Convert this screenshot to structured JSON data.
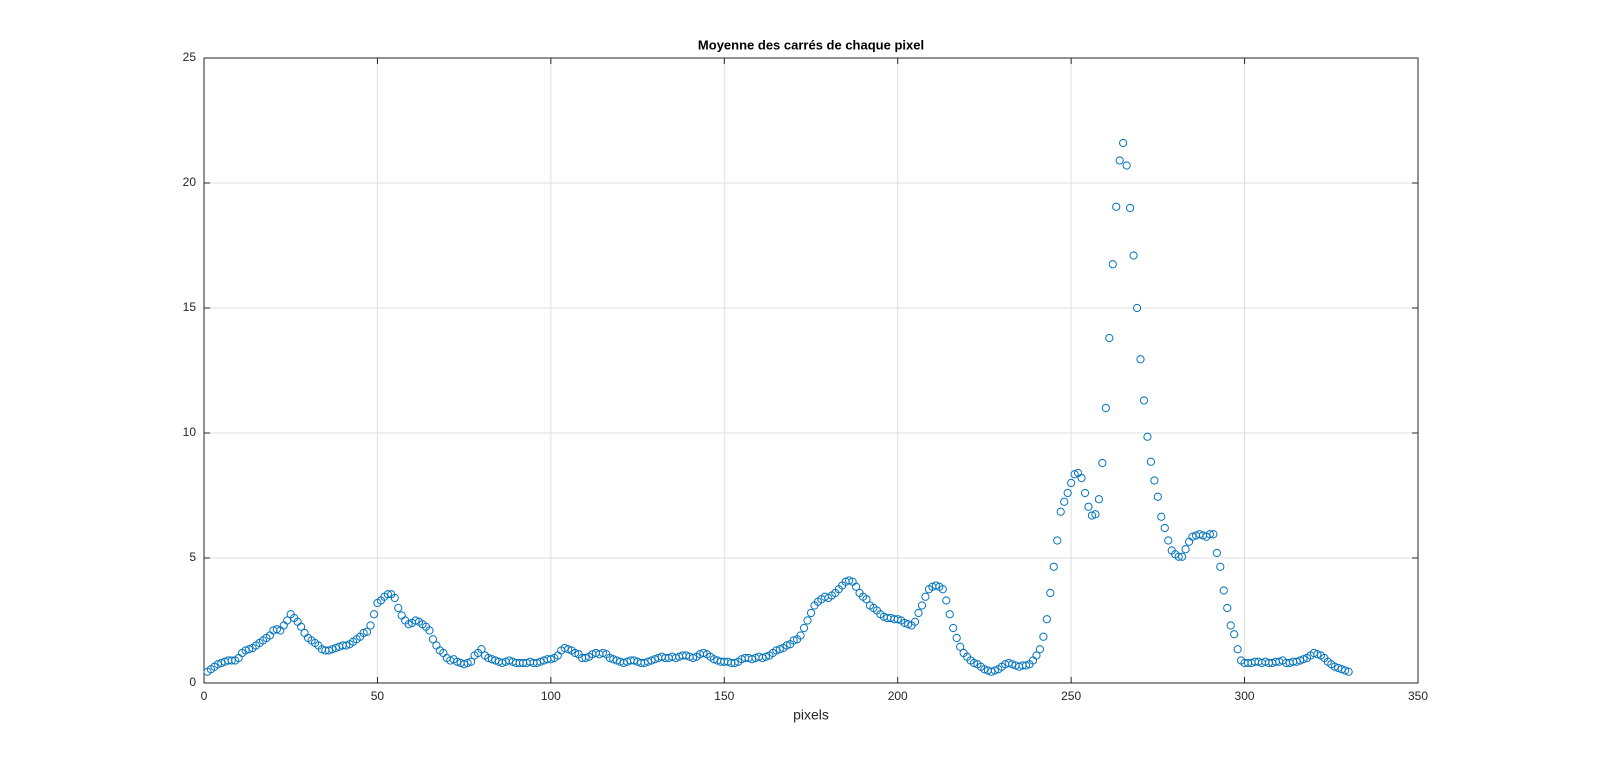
{
  "chart_data": {
    "type": "scatter",
    "title": "Moyenne des carrés de chaque pixel",
    "x_label": "pixels",
    "xlim": [
      0,
      350
    ],
    "xticks": [
      0,
      50,
      100,
      150,
      200,
      250,
      300,
      350
    ],
    "ylim": [
      0,
      25
    ],
    "yticks": [
      0,
      5,
      10,
      15,
      20,
      25
    ],
    "grid": true,
    "series": [
      {
        "color": "#0072bd",
        "x": [
          1,
          2,
          3,
          4,
          5,
          6,
          7,
          8,
          9,
          10,
          11,
          12,
          13,
          14,
          15,
          16,
          17,
          18,
          19,
          20,
          21,
          22,
          23,
          24,
          25,
          26,
          27,
          28,
          29,
          30,
          31,
          32,
          33,
          34,
          35,
          36,
          37,
          38,
          39,
          40,
          41,
          42,
          43,
          44,
          45,
          46,
          47,
          48,
          49,
          50,
          51,
          52,
          53,
          54,
          55,
          56,
          57,
          58,
          59,
          60,
          61,
          62,
          63,
          64,
          65,
          66,
          67,
          68,
          69,
          70,
          71,
          72,
          73,
          74,
          75,
          76,
          77,
          78,
          79,
          80,
          81,
          82,
          83,
          84,
          85,
          86,
          87,
          88,
          89,
          90,
          91,
          92,
          93,
          94,
          95,
          96,
          97,
          98,
          99,
          100,
          101,
          102,
          103,
          104,
          105,
          106,
          107,
          108,
          109,
          110,
          111,
          112,
          113,
          114,
          115,
          116,
          117,
          118,
          119,
          120,
          121,
          122,
          123,
          124,
          125,
          126,
          127,
          128,
          129,
          130,
          131,
          132,
          133,
          134,
          135,
          136,
          137,
          138,
          139,
          140,
          141,
          142,
          143,
          144,
          145,
          146,
          147,
          148,
          149,
          150,
          151,
          152,
          153,
          154,
          155,
          156,
          157,
          158,
          159,
          160,
          161,
          162,
          163,
          164,
          165,
          166,
          167,
          168,
          169,
          170,
          171,
          172,
          173,
          174,
          175,
          176,
          177,
          178,
          179,
          180,
          181,
          182,
          183,
          184,
          185,
          186,
          187,
          188,
          189,
          190,
          191,
          192,
          193,
          194,
          195,
          196,
          197,
          198,
          199,
          200,
          201,
          202,
          203,
          204,
          205,
          206,
          207,
          208,
          209,
          210,
          211,
          212,
          213,
          214,
          215,
          216,
          217,
          218,
          219,
          220,
          221,
          222,
          223,
          224,
          225,
          226,
          227,
          228,
          229,
          230,
          231,
          232,
          233,
          234,
          235,
          236,
          237,
          238,
          239,
          240,
          241,
          242,
          243,
          244,
          245,
          246,
          247,
          248,
          249,
          250,
          251,
          252,
          253,
          254,
          255,
          256,
          257,
          258,
          259,
          260,
          261,
          262,
          263,
          264,
          265,
          266,
          267,
          268,
          269,
          270,
          271,
          272,
          273,
          274,
          275,
          276,
          277,
          278,
          279,
          280,
          281,
          282,
          283,
          284,
          285,
          286,
          287,
          288,
          289,
          290,
          291,
          292,
          293,
          294,
          295,
          296,
          297,
          298,
          299,
          300,
          301,
          302,
          303,
          304,
          305,
          306,
          307,
          308,
          309,
          310,
          311,
          312,
          313,
          314,
          315,
          316,
          317,
          318,
          319,
          320,
          321,
          322,
          323,
          324,
          325,
          326,
          327,
          328,
          329,
          330
        ],
        "values": [
          0.45,
          0.55,
          0.65,
          0.75,
          0.8,
          0.85,
          0.9,
          0.9,
          0.9,
          1.0,
          1.2,
          1.3,
          1.35,
          1.4,
          1.5,
          1.6,
          1.7,
          1.8,
          1.9,
          2.1,
          2.15,
          2.1,
          2.3,
          2.5,
          2.75,
          2.6,
          2.45,
          2.25,
          2.0,
          1.8,
          1.7,
          1.6,
          1.5,
          1.35,
          1.3,
          1.3,
          1.35,
          1.4,
          1.45,
          1.5,
          1.5,
          1.55,
          1.65,
          1.75,
          1.85,
          2.0,
          2.05,
          2.3,
          2.75,
          3.2,
          3.3,
          3.45,
          3.55,
          3.55,
          3.4,
          3.0,
          2.7,
          2.5,
          2.35,
          2.4,
          2.5,
          2.45,
          2.35,
          2.25,
          2.1,
          1.75,
          1.5,
          1.3,
          1.2,
          1.0,
          0.9,
          0.95,
          0.85,
          0.8,
          0.75,
          0.8,
          0.85,
          1.1,
          1.2,
          1.35,
          1.1,
          1.0,
          0.95,
          0.9,
          0.85,
          0.8,
          0.85,
          0.9,
          0.85,
          0.8,
          0.8,
          0.8,
          0.8,
          0.85,
          0.8,
          0.8,
          0.85,
          0.9,
          0.95,
          0.95,
          1.0,
          1.1,
          1.3,
          1.4,
          1.35,
          1.3,
          1.2,
          1.15,
          1.0,
          1.0,
          1.05,
          1.15,
          1.2,
          1.15,
          1.2,
          1.15,
          1.0,
          0.95,
          0.9,
          0.85,
          0.8,
          0.85,
          0.9,
          0.9,
          0.85,
          0.8,
          0.8,
          0.85,
          0.9,
          0.95,
          1.0,
          1.05,
          1.0,
          1.0,
          1.05,
          1.0,
          1.05,
          1.1,
          1.1,
          1.05,
          1.0,
          1.05,
          1.15,
          1.2,
          1.15,
          1.05,
          0.95,
          0.9,
          0.85,
          0.85,
          0.85,
          0.8,
          0.8,
          0.85,
          0.95,
          1.0,
          1.0,
          0.95,
          1.0,
          1.05,
          1.0,
          1.05,
          1.1,
          1.2,
          1.3,
          1.35,
          1.4,
          1.5,
          1.55,
          1.7,
          1.75,
          1.9,
          2.2,
          2.5,
          2.8,
          3.1,
          3.25,
          3.35,
          3.45,
          3.4,
          3.5,
          3.6,
          3.75,
          3.9,
          4.05,
          4.1,
          4.05,
          3.85,
          3.6,
          3.45,
          3.35,
          3.1,
          3.0,
          2.9,
          2.75,
          2.65,
          2.6,
          2.6,
          2.55,
          2.55,
          2.5,
          2.4,
          2.35,
          2.3,
          2.45,
          2.8,
          3.1,
          3.45,
          3.75,
          3.85,
          3.9,
          3.85,
          3.75,
          3.3,
          2.75,
          2.2,
          1.8,
          1.45,
          1.2,
          1.05,
          0.9,
          0.8,
          0.75,
          0.65,
          0.55,
          0.5,
          0.45,
          0.5,
          0.55,
          0.65,
          0.75,
          0.8,
          0.75,
          0.7,
          0.65,
          0.7,
          0.7,
          0.75,
          0.9,
          1.1,
          1.35,
          1.85,
          2.55,
          3.6,
          4.65,
          5.7,
          6.85,
          7.25,
          7.6,
          8.0,
          8.35,
          8.4,
          8.2,
          7.6,
          7.05,
          6.7,
          6.75,
          7.35,
          8.8,
          11.0,
          13.8,
          16.75,
          19.05,
          20.9,
          21.6,
          20.7,
          19.0,
          17.1,
          15.0,
          12.95,
          11.3,
          9.85,
          8.85,
          8.1,
          7.45,
          6.65,
          6.2,
          5.7,
          5.3,
          5.15,
          5.05,
          5.05,
          5.35,
          5.65,
          5.85,
          5.9,
          5.95,
          5.9,
          5.85,
          5.95,
          5.95,
          5.2,
          4.65,
          3.7,
          3.0,
          2.3,
          1.95,
          1.35,
          0.9,
          0.8,
          0.8,
          0.8,
          0.85,
          0.85,
          0.8,
          0.85,
          0.8,
          0.8,
          0.85,
          0.85,
          0.9,
          0.8,
          0.8,
          0.85,
          0.85,
          0.9,
          0.95,
          1.0,
          1.1,
          1.2,
          1.15,
          1.1,
          1.0,
          0.85,
          0.75,
          0.65,
          0.6,
          0.55,
          0.5,
          0.45
        ]
      }
    ]
  }
}
